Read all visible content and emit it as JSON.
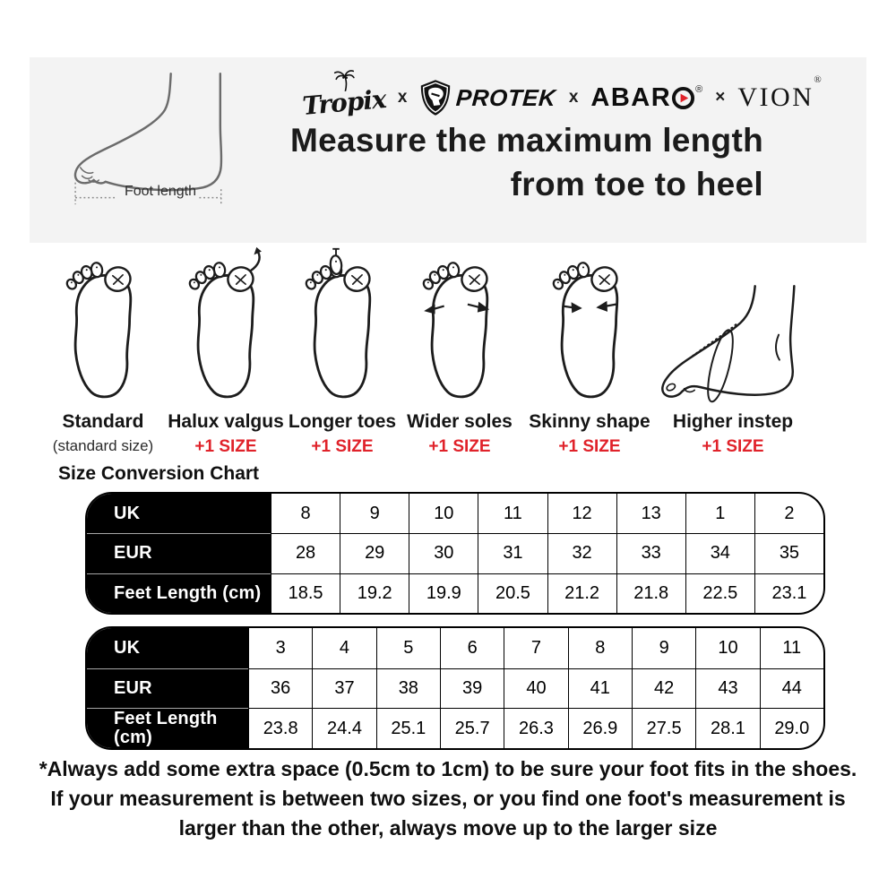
{
  "header": {
    "foot_length_label": "Foot length",
    "brands": {
      "tropix": "Tropix",
      "sep1": "x",
      "protek": "PROTEK",
      "sep2": "x",
      "abaro_prefix": "ABAR",
      "abaro_reg": "®",
      "sep3": "×",
      "vion": "VION",
      "vion_reg": "®"
    },
    "title_line1": "Measure the maximum length",
    "title_line2": "from toe to heel"
  },
  "foot_types": [
    {
      "label": "Standard",
      "sublabel": "(standard size)"
    },
    {
      "label": "Halux valgus",
      "sublabel": "+1 SIZE"
    },
    {
      "label": "Longer toes",
      "sublabel": "+1 SIZE"
    },
    {
      "label": "Wider soles",
      "sublabel": "+1 SIZE"
    },
    {
      "label": "Skinny shape",
      "sublabel": "+1 SIZE"
    },
    {
      "label": "Higher instep",
      "sublabel": "+1 SIZE"
    }
  ],
  "size_chart": {
    "section_title": "Size Conversion Chart",
    "tables": [
      {
        "rows": [
          {
            "header": "UK",
            "values": [
              "8",
              "9",
              "10",
              "11",
              "12",
              "13",
              "1",
              "2"
            ]
          },
          {
            "header": "EUR",
            "values": [
              "28",
              "29",
              "30",
              "31",
              "32",
              "33",
              "34",
              "35"
            ]
          },
          {
            "header": "Feet Length (cm)",
            "values": [
              "18.5",
              "19.2",
              "19.9",
              "20.5",
              "21.2",
              "21.8",
              "22.5",
              "23.1"
            ]
          }
        ]
      },
      {
        "rows": [
          {
            "header": "UK",
            "values": [
              "3",
              "4",
              "5",
              "6",
              "7",
              "8",
              "9",
              "10",
              "11"
            ]
          },
          {
            "header": "EUR",
            "values": [
              "36",
              "37",
              "38",
              "39",
              "40",
              "41",
              "42",
              "43",
              "44"
            ]
          },
          {
            "header": "Feet Length\n(cm)",
            "values": [
              "23.8",
              "24.4",
              "25.1",
              "25.7",
              "26.3",
              "26.9",
              "27.5",
              "28.1",
              "29.0"
            ]
          }
        ]
      }
    ]
  },
  "footnote_lines": [
    "*Always add some extra space (0.5cm to 1cm) to be sure your foot fits in the shoes.",
    "If your measurement is between two sizes, or you find one foot's measurement is",
    "larger than the other, always move up to the larger size"
  ],
  "icons": {
    "tropix_palm": "palm-tree-icon",
    "protek_shield": "shield-icon",
    "abaro_o": "play-circle-icon"
  },
  "colors": {
    "accent_red": "#e0222a",
    "table_header_bg": "#000000",
    "table_header_text": "#ffffff",
    "band_bg": "#f3f3f3"
  }
}
